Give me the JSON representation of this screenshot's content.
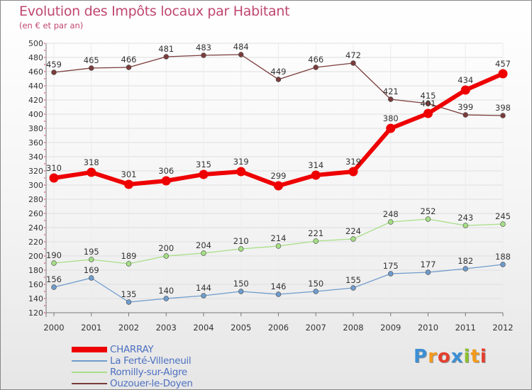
{
  "title": "Evolution des Impôts locaux par Habitant",
  "subtitle": "(en € et par an)",
  "colors": {
    "title": "#c0466f",
    "charray": "#ee0000",
    "ferte": "#6f9ccc",
    "romilly": "#a6df86",
    "ouzouer": "#7b3b3b",
    "legend_text": "#4c70c0",
    "grid": "#dedede"
  },
  "logo": {
    "letters": [
      "P",
      "r",
      "o",
      "x",
      "i",
      "t",
      "i"
    ],
    "colors": [
      "#3c8fd4",
      "#f39a1d",
      "#e43f2e",
      "#3c8fd4",
      "#8cbf2e",
      "#f39a1d",
      "#e43f2e"
    ]
  },
  "chart_data": {
    "type": "line",
    "title": "Evolution des Impôts locaux par Habitant",
    "subtitle": "(en € et par an)",
    "xlabel": "",
    "ylabel": "",
    "x": [
      "2000",
      "2001",
      "2002",
      "2003",
      "2004",
      "2005",
      "2006",
      "2007",
      "2008",
      "2009",
      "2010",
      "2011",
      "2012"
    ],
    "ylim": [
      120,
      500
    ],
    "ytick_step": 20,
    "grid": true,
    "legend_position": "bottom-left",
    "series": [
      {
        "name": "CHARRAY",
        "key": "charray",
        "values": [
          310,
          318,
          301,
          306,
          315,
          319,
          299,
          314,
          319,
          380,
          401,
          434,
          457
        ],
        "width": 6,
        "marker": 6.5
      },
      {
        "name": "La Ferté-Villeneuil",
        "key": "ferte",
        "values": [
          156,
          169,
          135,
          140,
          144,
          150,
          146,
          150,
          155,
          175,
          177,
          182,
          188
        ],
        "width": 1.3,
        "marker": 3.4
      },
      {
        "name": "Romilly-sur-Aigre",
        "key": "romilly",
        "values": [
          190,
          195,
          189,
          200,
          204,
          210,
          214,
          221,
          224,
          248,
          252,
          243,
          245
        ],
        "width": 1.3,
        "marker": 3.4
      },
      {
        "name": "Ouzouer-le-Doyen",
        "key": "ouzouer",
        "values": [
          459,
          465,
          466,
          481,
          483,
          484,
          449,
          466,
          472,
          421,
          415,
          399,
          398
        ],
        "width": 1.3,
        "marker": 3.4
      }
    ]
  }
}
